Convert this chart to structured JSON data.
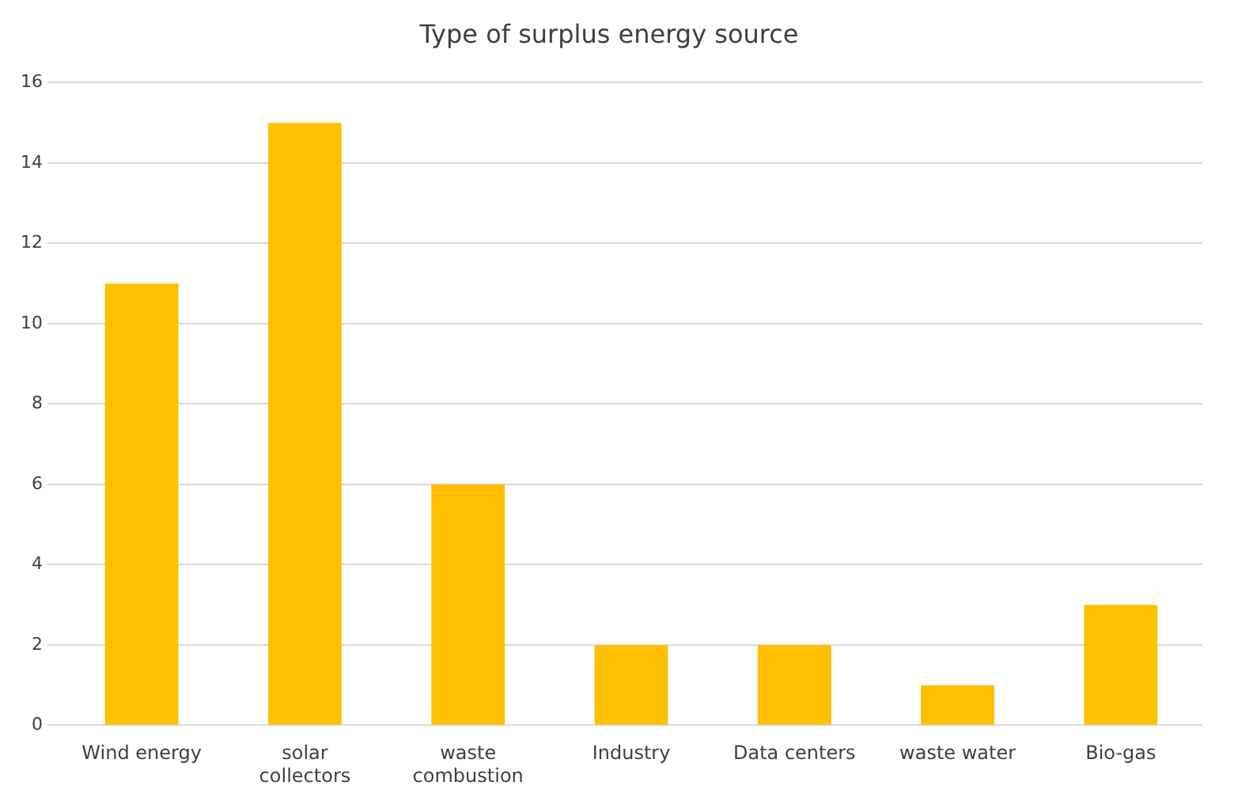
{
  "chart_data": {
    "type": "bar",
    "title": "Type of surplus energy source",
    "categories": [
      "Wind energy",
      "solar collectors",
      "waste combustion",
      "Industry",
      "Data centers",
      "waste water",
      "Bio-gas"
    ],
    "values": [
      11,
      15,
      6,
      2,
      2,
      1,
      3
    ],
    "color": "#ffc000",
    "ylim": [
      0,
      16
    ],
    "yticks": [
      0,
      2,
      4,
      6,
      8,
      10,
      12,
      14,
      16
    ],
    "grid": "y"
  }
}
